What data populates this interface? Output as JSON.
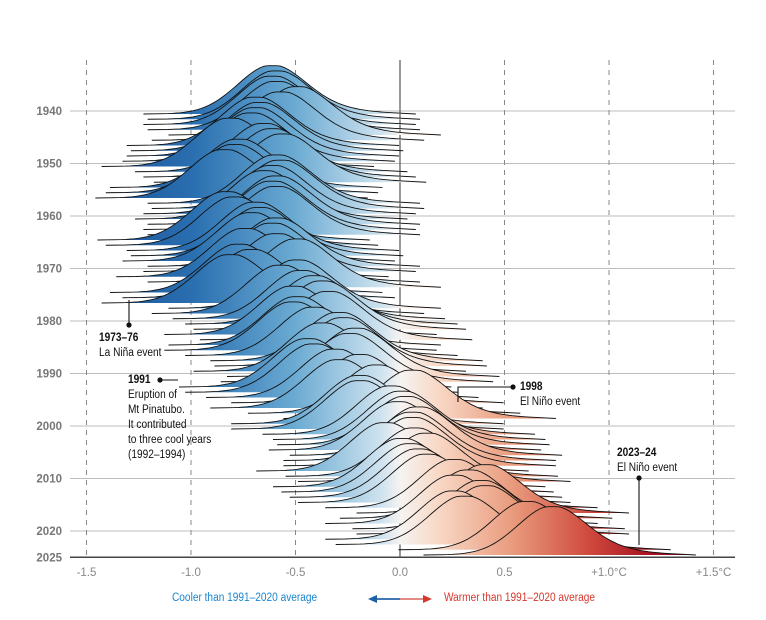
{
  "chart_data": {
    "type": "ridgeline",
    "xlim": [
      -1.6,
      1.6
    ],
    "x_ticks": [
      -1.5,
      -1.0,
      -0.5,
      0.0,
      0.5,
      1.0,
      1.5
    ],
    "x_tick_labels": [
      "-1.5",
      "-1.0",
      "-0.5",
      "0.0",
      "0.5",
      "+1.0°C",
      "+1.5°C"
    ],
    "y_ticks": [
      1940,
      1950,
      1960,
      1970,
      1980,
      1990,
      2000,
      2010,
      2020,
      2025
    ],
    "y_tick_labels": [
      "1940",
      "1950",
      "1960",
      "1970",
      "1980",
      "1990",
      "2000",
      "2010",
      "2020",
      "2025"
    ],
    "grid": true,
    "colors": {
      "cool": "#1f5fa6",
      "neutral": "#f4f4f4",
      "warm": "#a30f1f",
      "cool_text": "#1a86d0",
      "warm_text": "#d8372d"
    },
    "years": [
      1940,
      1941,
      1942,
      1943,
      1944,
      1945,
      1946,
      1947,
      1948,
      1949,
      1950,
      1951,
      1952,
      1953,
      1954,
      1955,
      1956,
      1957,
      1958,
      1959,
      1960,
      1961,
      1962,
      1963,
      1964,
      1965,
      1966,
      1967,
      1968,
      1969,
      1970,
      1971,
      1972,
      1973,
      1974,
      1975,
      1976,
      1977,
      1978,
      1979,
      1980,
      1981,
      1982,
      1983,
      1984,
      1985,
      1986,
      1987,
      1988,
      1989,
      1990,
      1991,
      1992,
      1993,
      1994,
      1995,
      1996,
      1997,
      1998,
      1999,
      2000,
      2001,
      2002,
      2003,
      2004,
      2005,
      2006,
      2007,
      2008,
      2009,
      2010,
      2011,
      2012,
      2013,
      2014,
      2015,
      2016,
      2017,
      2018,
      2019,
      2020,
      2021,
      2022,
      2023,
      2024
    ],
    "mean_anomaly": [
      -0.62,
      -0.6,
      -0.62,
      -0.6,
      -0.5,
      -0.58,
      -0.7,
      -0.68,
      -0.7,
      -0.72,
      -0.82,
      -0.66,
      -0.62,
      -0.57,
      -0.78,
      -0.8,
      -0.85,
      -0.6,
      -0.58,
      -0.62,
      -0.66,
      -0.6,
      -0.62,
      -0.6,
      -0.84,
      -0.8,
      -0.7,
      -0.68,
      -0.72,
      -0.6,
      -0.62,
      -0.75,
      -0.6,
      -0.5,
      -0.78,
      -0.72,
      -0.82,
      -0.5,
      -0.58,
      -0.48,
      -0.42,
      -0.38,
      -0.52,
      -0.35,
      -0.5,
      -0.52,
      -0.42,
      -0.3,
      -0.28,
      -0.38,
      -0.22,
      -0.25,
      -0.45,
      -0.42,
      -0.32,
      -0.2,
      -0.3,
      -0.12,
      0.05,
      -0.2,
      -0.2,
      -0.05,
      0.0,
      0.02,
      -0.02,
      0.08,
      0.05,
      0.05,
      -0.08,
      0.06,
      0.12,
      0.0,
      0.04,
      0.08,
      0.12,
      0.25,
      0.4,
      0.32,
      0.25,
      0.38,
      0.4,
      0.25,
      0.3,
      0.6,
      0.72
    ],
    "spread_sd": 0.16,
    "annotations": [
      {
        "title": "1973–76",
        "text": [
          "La Niña event"
        ]
      },
      {
        "title": "1991",
        "text": [
          "Eruption of",
          "Mt Pinatubo.",
          "It contributed",
          "to three cool years",
          "(1992–1994)"
        ]
      },
      {
        "title": "1998",
        "text": [
          "El Niño event"
        ]
      },
      {
        "title": "2023–24",
        "text": [
          "El Niño event"
        ]
      }
    ],
    "legend": {
      "cool": "Cooler than 1991–2020 average",
      "warm": "Warmer than 1991–2020 average"
    }
  }
}
